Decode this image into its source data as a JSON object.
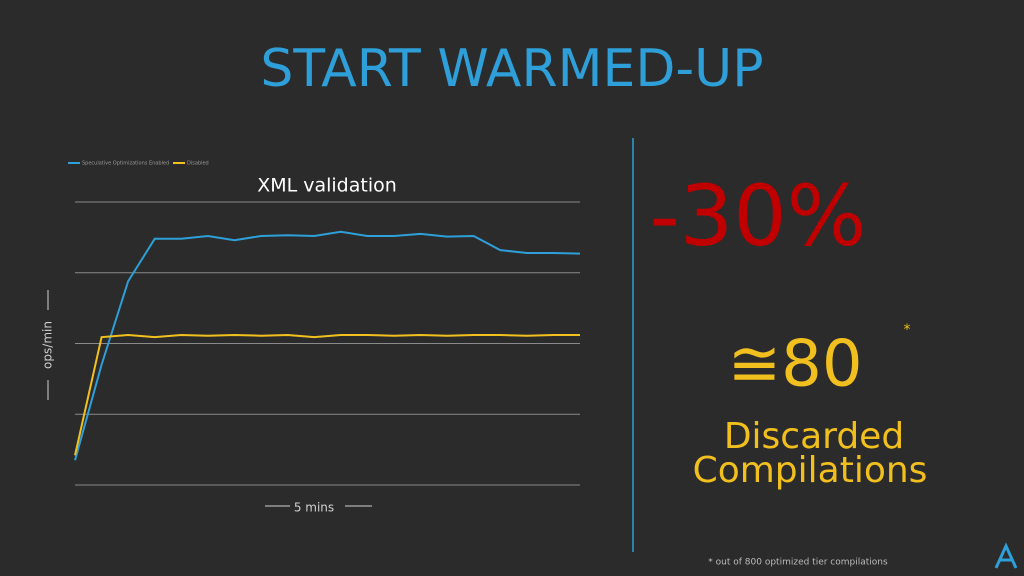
{
  "slide": {
    "title": "START WARMED-UP",
    "stat": "-30%",
    "count": "≅80",
    "count_mark": "*",
    "count_label_1": "Discarded",
    "count_label_2": "Compilations",
    "footnote": "* out of 800 optimized tier compilations"
  },
  "chart_data": {
    "type": "line",
    "title": "XML validation",
    "y_label": "ops/min",
    "x_label": "5 mins",
    "x": [
      0,
      1,
      2,
      3,
      4,
      5,
      6,
      7,
      8,
      9,
      10,
      11,
      12,
      13,
      14,
      15,
      16,
      17,
      18,
      19
    ],
    "xlim": [
      0,
      19
    ],
    "ylim": [
      0,
      4
    ],
    "yticks": [
      0,
      1,
      2,
      3,
      4
    ],
    "grid": true,
    "series": [
      {
        "name": "Speculative Optimizations Enabled",
        "color": "#2e9fd8",
        "values": [
          0.35,
          1.7,
          2.88,
          3.48,
          3.48,
          3.52,
          3.46,
          3.52,
          3.53,
          3.52,
          3.58,
          3.52,
          3.52,
          3.55,
          3.51,
          3.52,
          3.32,
          3.28,
          3.28,
          3.27
        ]
      },
      {
        "name": "Disabled",
        "color": "#f2c01e",
        "values": [
          0.42,
          2.09,
          2.12,
          2.09,
          2.12,
          2.11,
          2.12,
          2.11,
          2.12,
          2.09,
          2.12,
          2.12,
          2.11,
          2.12,
          2.11,
          2.12,
          2.12,
          2.11,
          2.12,
          2.12
        ]
      }
    ]
  }
}
